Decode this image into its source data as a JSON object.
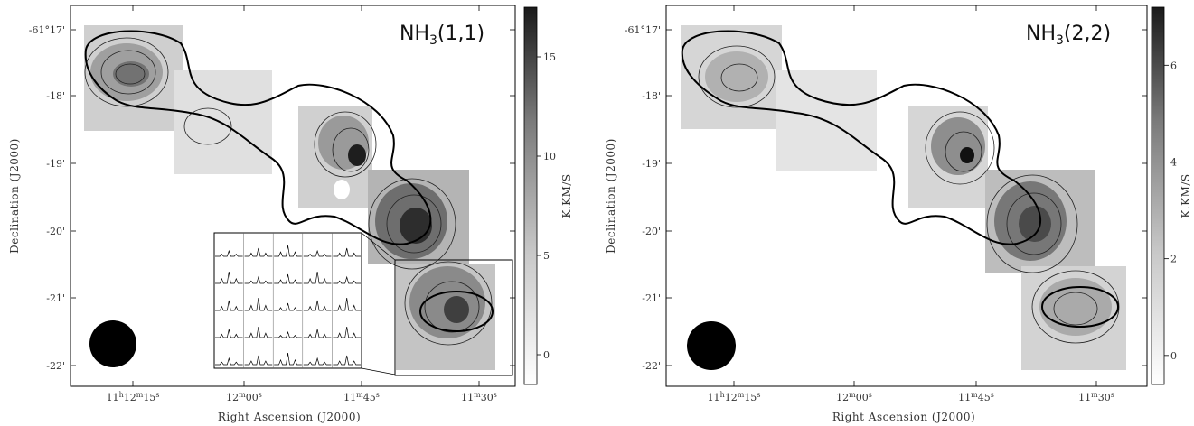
{
  "chart_data": [
    {
      "type": "heatmap",
      "title": "NH3(1,1)",
      "title_main": "NH",
      "title_sub": "3",
      "title_rest": "(1,1)",
      "xlabel": "Right Ascension (J2000)",
      "ylabel": "Declination (J2000)",
      "x_ticks": [
        "11h12m15s",
        "12m00s",
        "11m45s",
        "11m30s"
      ],
      "x_ticks_display": [
        {
          "main": "11",
          "s1": "h",
          "m": "12",
          "s2": "m",
          "n": "15",
          "s3": "s"
        },
        {
          "main": "",
          "s1": "",
          "m": "12",
          "s2": "m",
          "n": "00",
          "s3": "s"
        },
        {
          "main": "",
          "s1": "",
          "m": "11",
          "s2": "m",
          "n": "45",
          "s3": "s"
        },
        {
          "main": "",
          "s1": "",
          "m": "11",
          "s2": "m",
          "n": "30",
          "s3": "s"
        }
      ],
      "y_ticks": [
        "-61°17'",
        "-18'",
        "-19'",
        "-20'",
        "-21'",
        "-22'"
      ],
      "colorbar_label": "K.KM/S",
      "colorbar_ticks": [
        0,
        5,
        10,
        15
      ],
      "colorbar_range": [
        -1.5,
        17.5
      ],
      "has_inset_spectra": true,
      "inset_grid": [
        5,
        5
      ]
    },
    {
      "type": "heatmap",
      "title": "NH3(2,2)",
      "title_main": "NH",
      "title_sub": "3",
      "title_rest": "(2,2)",
      "xlabel": "Right Ascension (J2000)",
      "ylabel": "Declination (J2000)",
      "x_ticks": [
        "11h12m15s",
        "12m00s",
        "11m45s",
        "11m30s"
      ],
      "x_ticks_display": [
        {
          "main": "11",
          "s1": "h",
          "m": "12",
          "s2": "m",
          "n": "15",
          "s3": "s"
        },
        {
          "main": "",
          "s1": "",
          "m": "12",
          "s2": "m",
          "n": "00",
          "s3": "s"
        },
        {
          "main": "",
          "s1": "",
          "m": "11",
          "s2": "m",
          "n": "45",
          "s3": "s"
        },
        {
          "main": "",
          "s1": "",
          "m": "11",
          "s2": "m",
          "n": "30",
          "s3": "s"
        }
      ],
      "y_ticks": [
        "-61°17'",
        "-18'",
        "-19'",
        "-20'",
        "-21'",
        "-22'"
      ],
      "colorbar_label": "K.KM/S",
      "colorbar_ticks": [
        0,
        2,
        4,
        6
      ],
      "colorbar_range": [
        -0.6,
        7.2
      ],
      "has_inset_spectra": false
    }
  ]
}
